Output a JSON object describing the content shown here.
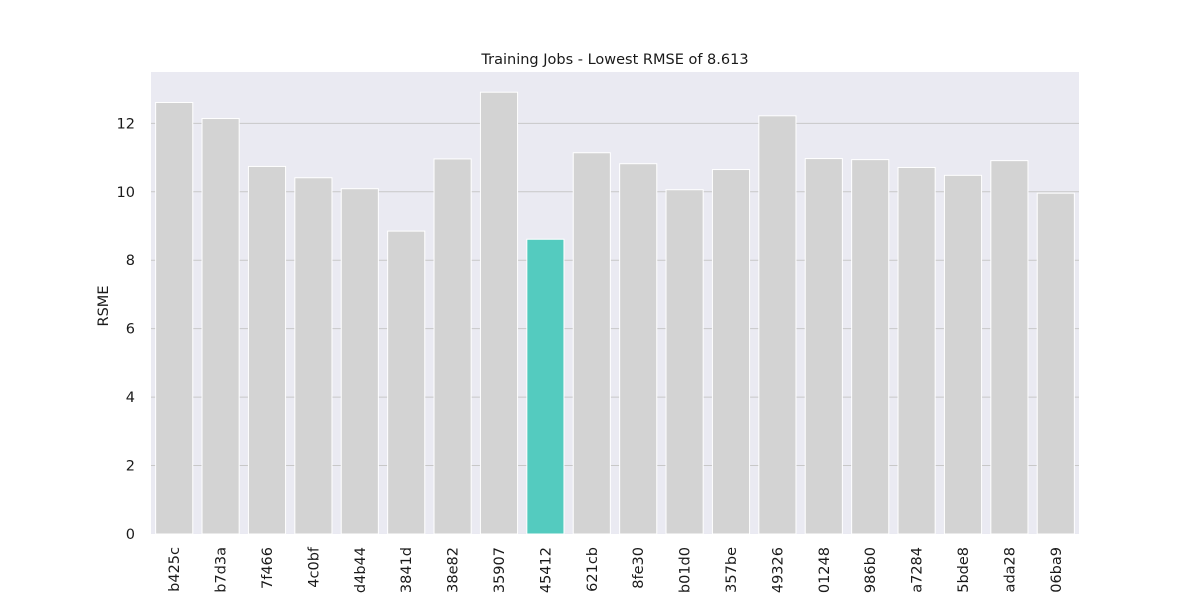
{
  "chart_data": {
    "type": "bar",
    "title": "Training Jobs - Lowest RMSE of 8.613",
    "xlabel": "",
    "ylabel": "RSME",
    "ylim": [
      0,
      13.5
    ],
    "yticks": [
      0,
      2,
      4,
      6,
      8,
      10,
      12
    ],
    "grid": true,
    "legend": "none",
    "colors": {
      "bar": "#d3d3d3",
      "highlight": "#54cbbf",
      "background": "#eaeaf2",
      "grid": "#c8c8c8"
    },
    "highlight_index": 8,
    "categories": [
      "b425c",
      "b7d3a",
      "7f466",
      "4c0bf",
      "d4b44",
      "3841d",
      "38e82",
      "35907",
      "45412",
      "621cb",
      "8fe30",
      "b01d0",
      "357be",
      "49326",
      "01248",
      "986b0",
      "a7284",
      "5bde8",
      "ada28",
      "06ba9"
    ],
    "values": [
      12.61,
      12.14,
      10.74,
      10.41,
      10.09,
      8.85,
      10.96,
      12.91,
      8.613,
      11.14,
      10.82,
      10.06,
      10.65,
      12.22,
      10.97,
      10.94,
      10.71,
      10.48,
      10.91,
      9.96
    ]
  }
}
